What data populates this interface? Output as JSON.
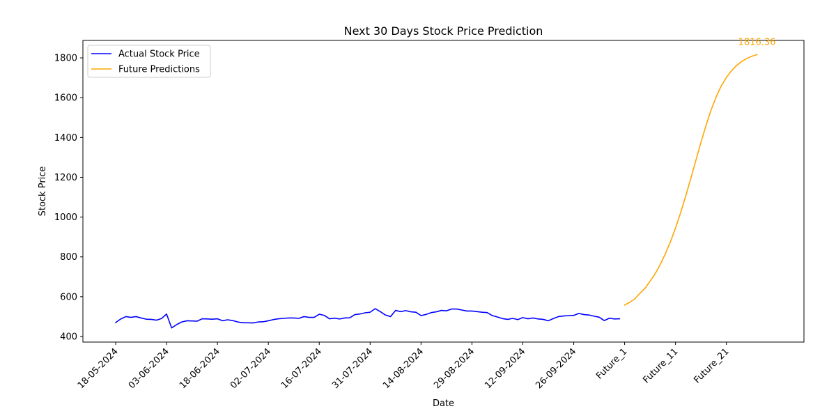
{
  "chart_data": {
    "type": "line",
    "title": "Next 30 Days Stock Price Prediction",
    "xlabel": "Date",
    "ylabel": "Stock Price",
    "ylim": [
      375,
      1880
    ],
    "yticks": [
      400,
      600,
      800,
      1000,
      1200,
      1400,
      1600,
      1800
    ],
    "xticks": [
      {
        "i": 0,
        "label": "18-05-2024"
      },
      {
        "i": 10,
        "label": "03-06-2024"
      },
      {
        "i": 20,
        "label": "18-06-2024"
      },
      {
        "i": 30,
        "label": "02-07-2024"
      },
      {
        "i": 40,
        "label": "16-07-2024"
      },
      {
        "i": 50,
        "label": "31-07-2024"
      },
      {
        "i": 60,
        "label": "14-08-2024"
      },
      {
        "i": 70,
        "label": "29-08-2024"
      },
      {
        "i": 80,
        "label": "12-09-2024"
      },
      {
        "i": 90,
        "label": "26-09-2024"
      },
      {
        "i": 100,
        "label": "Future_1"
      },
      {
        "i": 110,
        "label": "Future_11"
      },
      {
        "i": 120,
        "label": "Future_21"
      }
    ],
    "grid": false,
    "legend_position": "upper-left",
    "series": [
      {
        "name": "Actual Stock Price",
        "color": "#0000ff",
        "start_index": 0,
        "values": [
          470,
          488,
          500,
          496,
          500,
          493,
          487,
          486,
          482,
          490,
          513,
          443,
          460,
          473,
          479,
          478,
          477,
          489,
          488,
          487,
          489,
          479,
          484,
          480,
          473,
          469,
          469,
          468,
          473,
          474,
          479,
          485,
          489,
          491,
          493,
          493,
          491,
          500,
          496,
          496,
          512,
          506,
          489,
          492,
          488,
          493,
          494,
          510,
          513,
          519,
          522,
          540,
          525,
          508,
          500,
          531,
          525,
          530,
          524,
          522,
          505,
          511,
          520,
          524,
          531,
          529,
          538,
          538,
          533,
          528,
          528,
          525,
          522,
          520,
          505,
          498,
          490,
          486,
          491,
          485,
          495,
          489,
          493,
          488,
          486,
          479,
          490,
          500,
          503,
          505,
          506,
          516,
          510,
          508,
          502,
          497,
          480,
          492,
          488,
          489
        ]
      },
      {
        "name": "Future Predictions",
        "color": "#ffa500",
        "start_index": 100,
        "values": [
          558,
          572,
          589,
          617,
          642,
          678,
          715,
          762,
          815,
          876,
          945,
          1022,
          1106,
          1194,
          1285,
          1376,
          1461,
          1539,
          1605,
          1660,
          1702,
          1736,
          1762,
          1782,
          1797,
          1808,
          1816.36
        ]
      }
    ],
    "annotations": [
      {
        "text": "1816.36",
        "series": 1,
        "point": "last",
        "color": "#ffa500"
      }
    ]
  }
}
